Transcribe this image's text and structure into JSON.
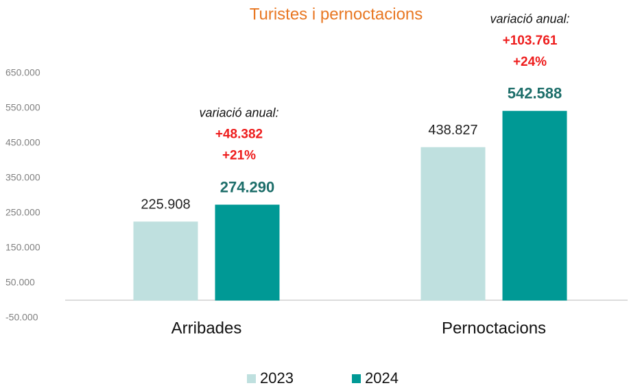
{
  "chart_data": {
    "type": "bar",
    "title": "Turistes i pernoctacions",
    "categories": [
      "Arribades",
      "Pernoctacions"
    ],
    "series": [
      {
        "name": "2023",
        "color": "#bfe0df",
        "values": [
          225908,
          438827
        ],
        "value_labels": [
          "225.908",
          "438.827"
        ]
      },
      {
        "name": "2024",
        "color": "#009995",
        "values": [
          274290,
          542588
        ],
        "value_labels": [
          "274.290",
          "542.588"
        ]
      }
    ],
    "annotations": [
      {
        "label": "variació anual:",
        "difference": "+48.382",
        "percent": "+21%"
      },
      {
        "label": "variació anual:",
        "difference": "+103.761",
        "percent": "+24%"
      }
    ],
    "ylim": [
      -50000,
      650000
    ],
    "yticks": [
      {
        "value": -50000,
        "label": "-50.000"
      },
      {
        "value": 50000,
        "label": "50.000"
      },
      {
        "value": 150000,
        "label": "150.000"
      },
      {
        "value": 250000,
        "label": "250.000"
      },
      {
        "value": 350000,
        "label": "350.000"
      },
      {
        "value": 450000,
        "label": "450.000"
      },
      {
        "value": 550000,
        "label": "550.000"
      },
      {
        "value": 650000,
        "label": "650.000"
      }
    ],
    "grid": false,
    "legend": "bottom"
  }
}
